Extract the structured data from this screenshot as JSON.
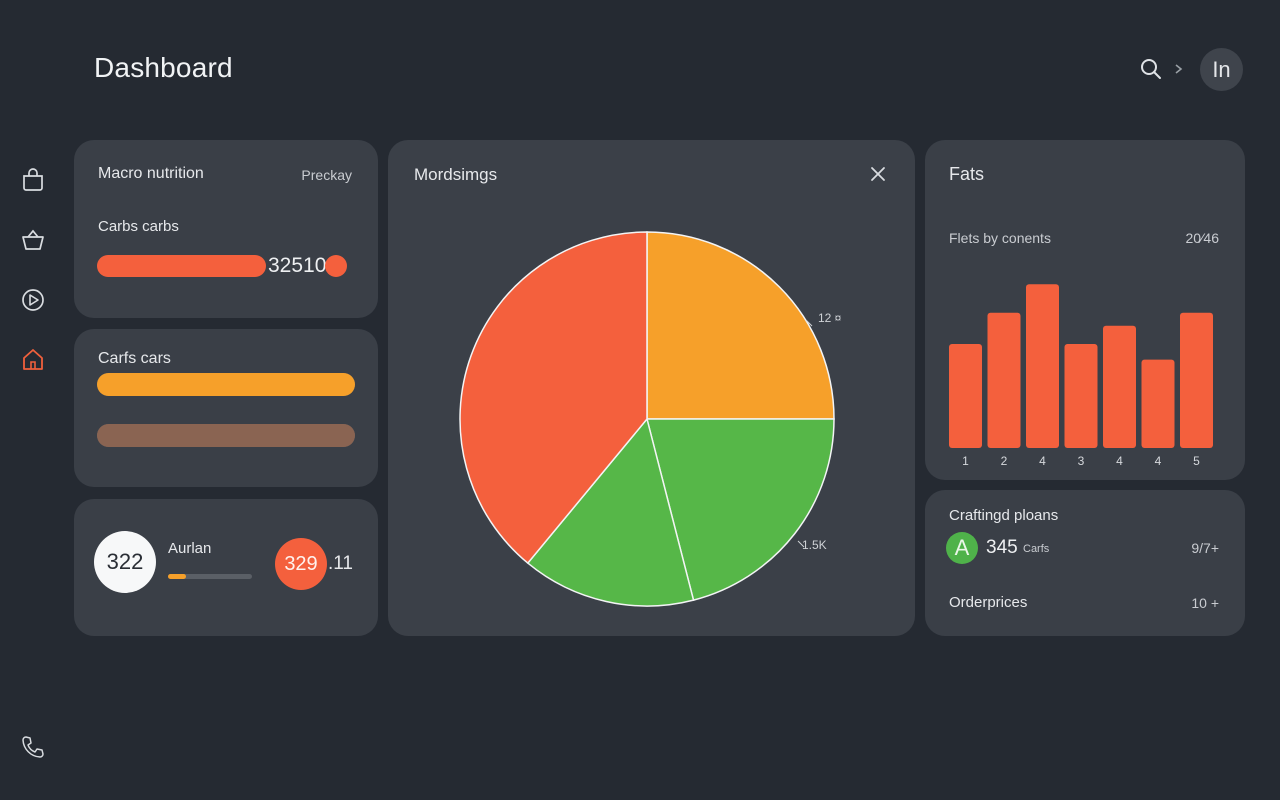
{
  "header": {
    "title": "Dashboard",
    "avatar_text": "In"
  },
  "sidebar": {
    "items": [
      {
        "icon": "bag-icon"
      },
      {
        "icon": "basket-icon"
      },
      {
        "icon": "play-icon"
      },
      {
        "icon": "home-icon",
        "active": true
      }
    ],
    "footer_icon": "phone-icon"
  },
  "macro_card": {
    "title": "Macro nutrition",
    "period": "Preckay",
    "row_label": "Carbs carbs",
    "value": "32510",
    "bar_fraction": 0.65,
    "bar_color": "#f4603d"
  },
  "carbs_card": {
    "title": "Carfs cars",
    "bar1_fraction": 1.0,
    "bar1_color": "#f6a02a",
    "bar2_fraction": 1.0,
    "bar2_color": "#8a6452"
  },
  "stats_card": {
    "left_value": "322",
    "label": "Aurlan",
    "progress_fraction": 0.22,
    "right_value": "329",
    "right_suffix": ".11"
  },
  "pie_card": {
    "title": "Mordsimgs",
    "label_top": "12 ¤",
    "label_bottom": "1.5K"
  },
  "chart_data": {
    "type": "pie",
    "title": "",
    "slices": [
      {
        "value": 25,
        "color": "#f6a02a"
      },
      {
        "value": 21,
        "color": "#56b748"
      },
      {
        "value": 15,
        "color": "#56b748"
      },
      {
        "value": 39,
        "color": "#f4603d"
      }
    ]
  },
  "fats_card": {
    "title": "Fats",
    "subtitle": "Flets by conents",
    "value": "20⁄46",
    "bar_color": "#f4603d",
    "bars": [
      {
        "label": "1",
        "value": 80
      },
      {
        "label": "2",
        "value": 104
      },
      {
        "label": "4",
        "value": 126
      },
      {
        "label": "3",
        "value": 80
      },
      {
        "label": "4",
        "value": 94
      },
      {
        "label": "4",
        "value": 68
      },
      {
        "label": "5",
        "value": 104
      }
    ]
  },
  "craft_card": {
    "title": "Craftingd ploans",
    "badge": "A",
    "value": "345",
    "unit": "Carfs",
    "right_value": "9/7+",
    "row2_label": "Orderprices",
    "row2_value": "10 +"
  }
}
